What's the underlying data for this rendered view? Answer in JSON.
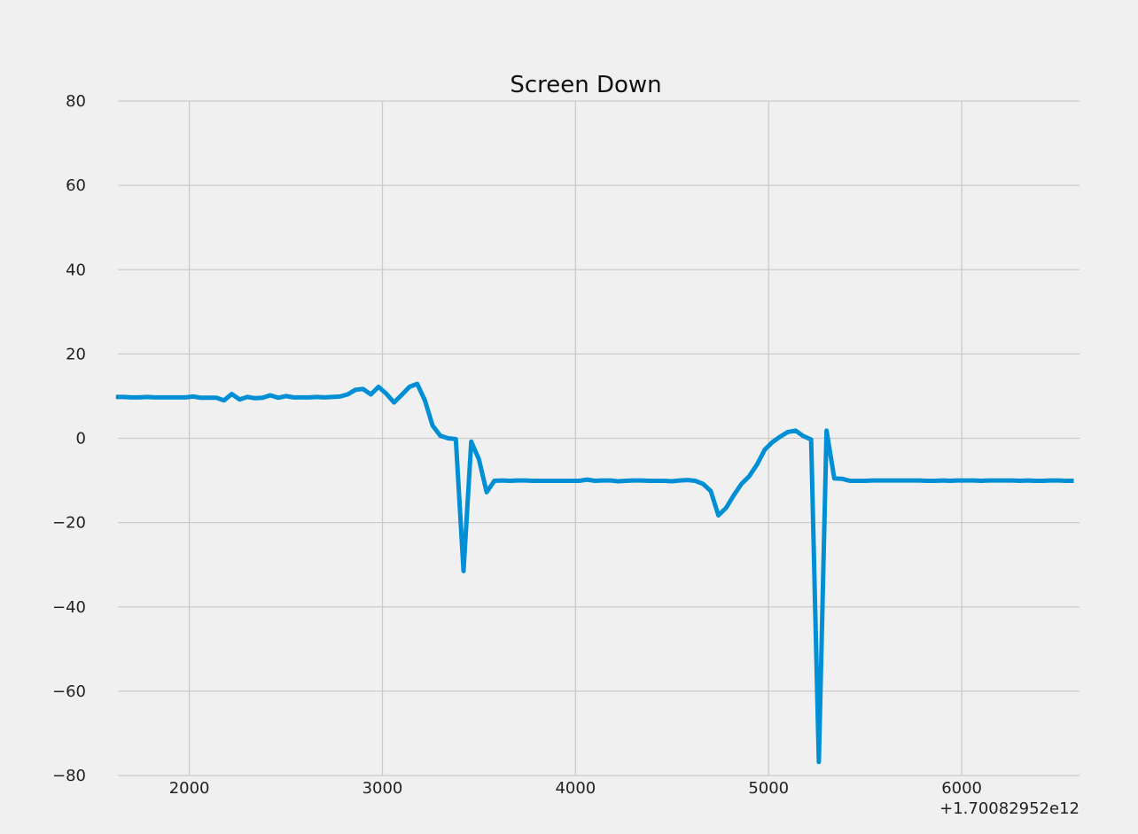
{
  "chart_data": {
    "type": "line",
    "title": "Screen Down",
    "xlabel": "",
    "ylabel": "",
    "x_offset_label": "+1.70082952e12",
    "xlim": [
      1630,
      6610
    ],
    "ylim": [
      -80,
      80
    ],
    "x_ticks": [
      2000,
      3000,
      4000,
      5000,
      6000
    ],
    "y_ticks": [
      -80,
      -60,
      -40,
      -20,
      0,
      20,
      40,
      60,
      80
    ],
    "x_tick_labels": [
      "2000",
      "3000",
      "4000",
      "5000",
      "6000"
    ],
    "y_tick_labels": [
      "−80",
      "−60",
      "−40",
      "−20",
      "0",
      "20",
      "40",
      "60",
      "80"
    ],
    "grid": true,
    "line_color": "#008fd5",
    "background_color": "#f0f0f0",
    "series": [
      {
        "x": [
          1620,
          1660,
          1700,
          1740,
          1780,
          1820,
          1860,
          1900,
          1940,
          1980,
          2020,
          2060,
          2100,
          2140,
          2180,
          2220,
          2260,
          2300,
          2340,
          2380,
          2420,
          2460,
          2500,
          2540,
          2580,
          2620,
          2660,
          2700,
          2740,
          2780,
          2820,
          2860,
          2900,
          2940,
          2980,
          3020,
          3060,
          3100,
          3140,
          3180,
          3220,
          3260,
          3300,
          3340,
          3380,
          3420,
          3460,
          3500,
          3540,
          3580,
          3620,
          3660,
          3700,
          3740,
          3780,
          3820,
          3860,
          3900,
          3940,
          3980,
          4020,
          4060,
          4100,
          4140,
          4180,
          4220,
          4260,
          4300,
          4340,
          4380,
          4420,
          4460,
          4500,
          4540,
          4580,
          4620,
          4660,
          4700,
          4740,
          4780,
          4820,
          4860,
          4900,
          4940,
          4980,
          5020,
          5060,
          5100,
          5140,
          5180,
          5220,
          5260,
          5300,
          5340,
          5380,
          5420,
          5460,
          5500,
          5540,
          5580,
          5620,
          5660,
          5700,
          5740,
          5780,
          5820,
          5860,
          5900,
          5940,
          5980,
          6020,
          6060,
          6100,
          6140,
          6180,
          6220,
          6260,
          6300,
          6340,
          6380,
          6420,
          6460,
          6500,
          6540,
          6580
        ],
        "y": [
          9.8,
          9.8,
          9.7,
          9.7,
          9.8,
          9.7,
          9.7,
          9.7,
          9.7,
          9.7,
          9.9,
          9.6,
          9.6,
          9.6,
          9.0,
          10.5,
          9.2,
          9.8,
          9.5,
          9.6,
          10.2,
          9.6,
          10.0,
          9.7,
          9.7,
          9.7,
          9.8,
          9.7,
          9.8,
          9.9,
          10.4,
          11.5,
          11.7,
          10.4,
          12.2,
          10.6,
          8.5,
          10.3,
          12.2,
          12.9,
          9.0,
          3.0,
          0.6,
          0.0,
          -0.2,
          -31.5,
          -0.8,
          -5.0,
          -12.8,
          -10.1,
          -10.0,
          -10.1,
          -10.0,
          -10.0,
          -10.1,
          -10.1,
          -10.1,
          -10.1,
          -10.1,
          -10.1,
          -10.1,
          -9.8,
          -10.1,
          -10.0,
          -10.0,
          -10.2,
          -10.1,
          -10.0,
          -10.0,
          -10.1,
          -10.1,
          -10.1,
          -10.2,
          -10.0,
          -9.9,
          -10.1,
          -10.8,
          -12.5,
          -18.3,
          -16.5,
          -13.5,
          -10.8,
          -9.0,
          -6.2,
          -2.7,
          -0.9,
          0.4,
          1.5,
          1.8,
          0.5,
          -0.3,
          -76.8,
          1.8,
          -9.5,
          -9.6,
          -10.1,
          -10.1,
          -10.1,
          -10.0,
          -10.0,
          -10.0,
          -10.0,
          -10.0,
          -10.0,
          -10.0,
          -10.1,
          -10.1,
          -10.0,
          -10.1,
          -10.0,
          -10.0,
          -10.0,
          -10.1,
          -10.0,
          -10.0,
          -10.0,
          -10.0,
          -10.1,
          -10.0,
          -10.1,
          -10.1,
          -10.0,
          -10.0,
          -10.1,
          -10.1
        ]
      }
    ]
  }
}
